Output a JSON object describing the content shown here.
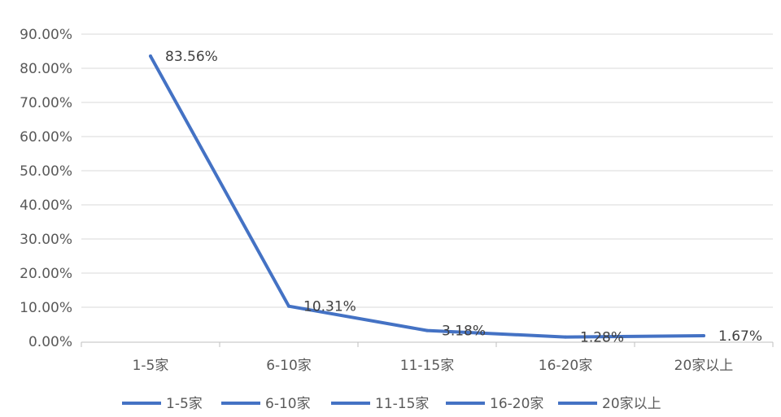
{
  "chart_data": {
    "type": "line",
    "title": "",
    "xlabel": "",
    "ylabel": "",
    "categories": [
      "1-5家",
      "6-10家",
      "11-15家",
      "16-20家",
      "20家以上"
    ],
    "values": [
      83.56,
      10.31,
      3.18,
      1.28,
      1.67
    ],
    "data_labels": [
      "83.56%",
      "10.31%",
      "3.18%",
      "1.28%",
      "1.67%"
    ],
    "y_ticks": [
      "0.00%",
      "10.00%",
      "20.00%",
      "30.00%",
      "40.00%",
      "50.00%",
      "60.00%",
      "70.00%",
      "80.00%",
      "90.00%"
    ],
    "ylim": [
      0,
      90
    ],
    "grid": true,
    "legend_position": "bottom",
    "legend": [
      "1-5家",
      "6-10家",
      "11-15家",
      "16-20家",
      "20家以上"
    ],
    "colors": {
      "line": "#4472C4",
      "grid": "#D9D9D9",
      "axis": "#BFBFBF"
    }
  }
}
